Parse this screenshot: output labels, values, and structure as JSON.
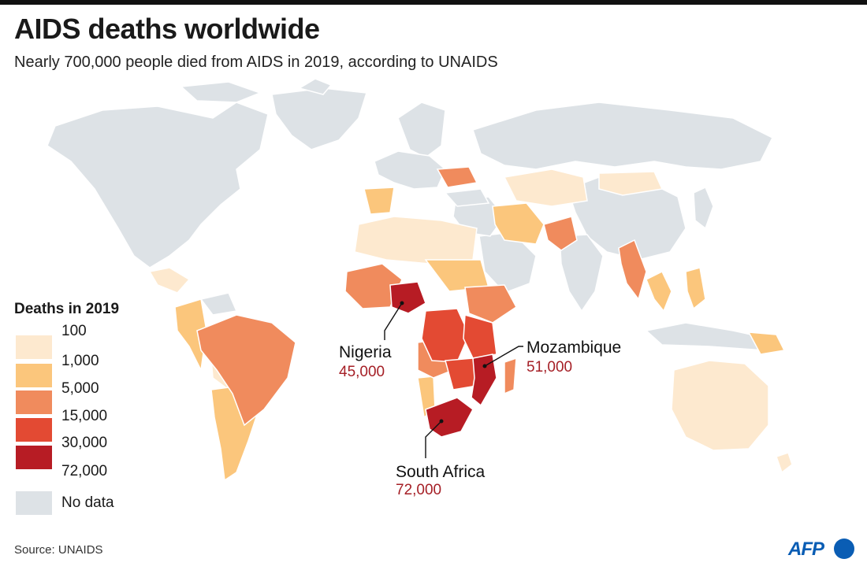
{
  "header": {
    "title": "AIDS deaths worldwide",
    "subtitle": "Nearly 700,000 people died from AIDS in 2019, according to UNAIDS"
  },
  "legend": {
    "title": "Deaths in 2019",
    "ticks": [
      "100",
      "1,000",
      "5,000",
      "15,000",
      "30,000",
      "72,000"
    ],
    "colors": [
      "#fde9cf",
      "#fbc67c",
      "#f08b5d",
      "#e34a33",
      "#b71c24"
    ],
    "no_data_label": "No data",
    "no_data_color": "#dde2e6"
  },
  "callouts": [
    {
      "name": "Nigeria",
      "value": "45,000"
    },
    {
      "name": "Mozambique",
      "value": "51,000"
    },
    {
      "name": "South Africa",
      "value": "72,000"
    }
  ],
  "footer": {
    "source": "Source: UNAIDS",
    "logo": "AFP"
  }
}
